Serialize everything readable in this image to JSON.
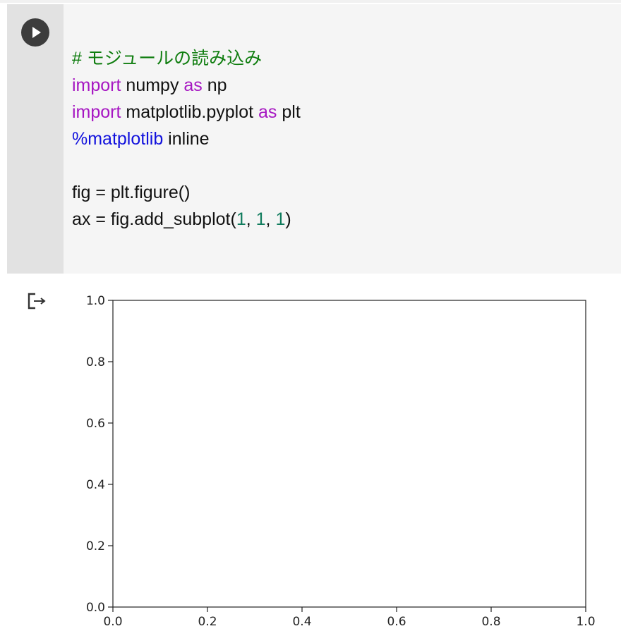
{
  "notebook": {
    "run_button_icon": "play-icon",
    "output_icon": "output-arrow-icon"
  },
  "code_lines": [
    [
      {
        "t": "# モジュールの読み込み",
        "c": "comment"
      }
    ],
    [
      {
        "t": "import",
        "c": "keyword"
      },
      {
        "t": " numpy ",
        "c": "plain"
      },
      {
        "t": "as",
        "c": "keyword"
      },
      {
        "t": " np",
        "c": "plain"
      }
    ],
    [
      {
        "t": "import",
        "c": "keyword"
      },
      {
        "t": " matplotlib.pyplot ",
        "c": "plain"
      },
      {
        "t": "as",
        "c": "keyword"
      },
      {
        "t": " plt",
        "c": "plain"
      }
    ],
    [
      {
        "t": "%matplotlib",
        "c": "magic"
      },
      {
        "t": " inline",
        "c": "plain"
      }
    ],
    [],
    [
      {
        "t": "fig = plt.figure()",
        "c": "plain"
      }
    ],
    [
      {
        "t": "ax = fig.add_subplot(",
        "c": "plain"
      },
      {
        "t": "1",
        "c": "number"
      },
      {
        "t": ", ",
        "c": "plain"
      },
      {
        "t": "1",
        "c": "number"
      },
      {
        "t": ", ",
        "c": "plain"
      },
      {
        "t": "1",
        "c": "number"
      },
      {
        "t": ")",
        "c": "plain"
      }
    ]
  ],
  "chart_data": {
    "type": "scatter",
    "title": "",
    "xlabel": "",
    "ylabel": "",
    "x": [],
    "y": [],
    "xlim": [
      0.0,
      1.0
    ],
    "ylim": [
      0.0,
      1.0
    ],
    "xticks": [
      "0.0",
      "0.2",
      "0.4",
      "0.6",
      "0.8",
      "1.0"
    ],
    "yticks": [
      "0.0",
      "0.2",
      "0.4",
      "0.6",
      "0.8",
      "1.0"
    ],
    "grid": false
  }
}
